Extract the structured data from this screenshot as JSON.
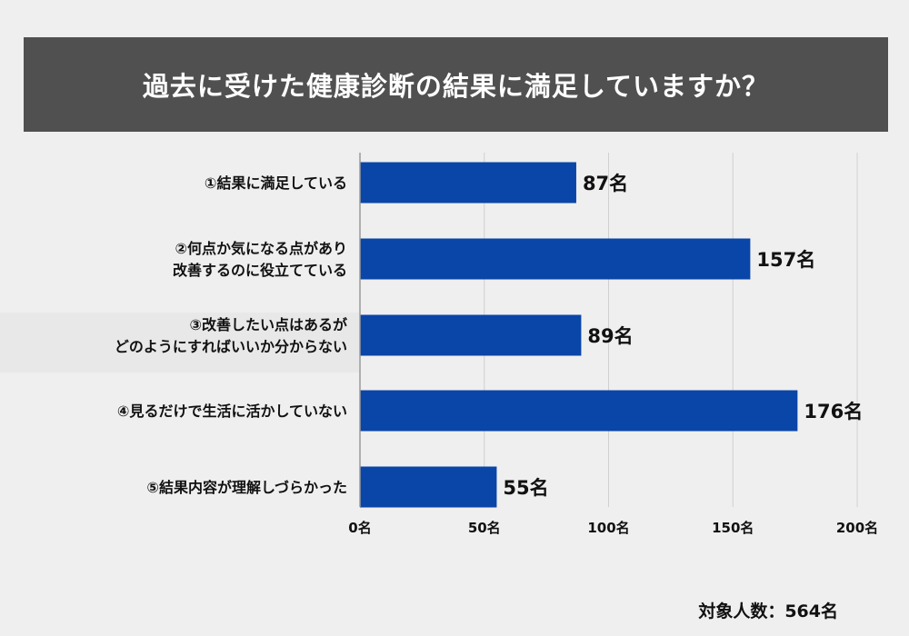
{
  "title": "過去に受けた健康診断の結果に満足していますか？",
  "footnote": "対象人数：564名",
  "colors": {
    "bar": "#0a45a8",
    "title_bg": "#505050",
    "background": "#efefef",
    "grid": "#d0d0d0"
  },
  "chart_data": {
    "type": "bar",
    "orientation": "horizontal",
    "categories": [
      [
        "①結果に満足している"
      ],
      [
        "②何点か気になる点があり",
        "改善するのに役立てている"
      ],
      [
        "③改善したい点はあるが",
        "どのようにすればいいか分からない"
      ],
      [
        "④見るだけで生活に活かしていない"
      ],
      [
        "⑤結果内容が理解しづらかった"
      ]
    ],
    "values": [
      87,
      157,
      89,
      176,
      55
    ],
    "value_labels": [
      "87名",
      "157名",
      "89名",
      "176名",
      "55名"
    ],
    "xticks": [
      "0名",
      "50名",
      "100名",
      "150名",
      "200名"
    ],
    "xtick_values": [
      0,
      50,
      100,
      150,
      200
    ],
    "xlim": [
      0,
      200
    ],
    "grid": true
  }
}
